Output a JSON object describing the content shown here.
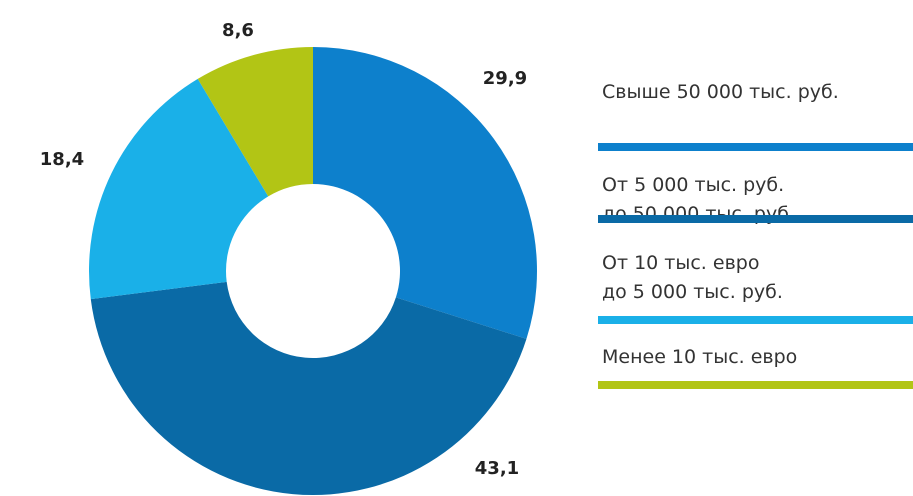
{
  "chart_data": {
    "type": "donut",
    "series": [
      {
        "name": "Свыше 50 000 тыс. руб.",
        "color": "#0d80cc",
        "values": [
          29.9
        ],
        "value_labels": [
          "29,9"
        ]
      },
      {
        "name": "От 5 000 тыс. руб.\nдо 50 000 тыс. руб.",
        "color": "#0a6aa6",
        "values": [
          43.1
        ],
        "value_labels": [
          "43,1"
        ]
      },
      {
        "name": "От 10 тыс. евро\nдо 5 000 тыс. руб.",
        "color": "#1ab0e8",
        "values": [
          18.4
        ],
        "value_labels": [
          "18,4"
        ]
      },
      {
        "name": "Менее 10 тыс. евро",
        "color": "#b2c515",
        "values": [
          8.6
        ],
        "value_labels": [
          "8,6"
        ]
      }
    ]
  }
}
